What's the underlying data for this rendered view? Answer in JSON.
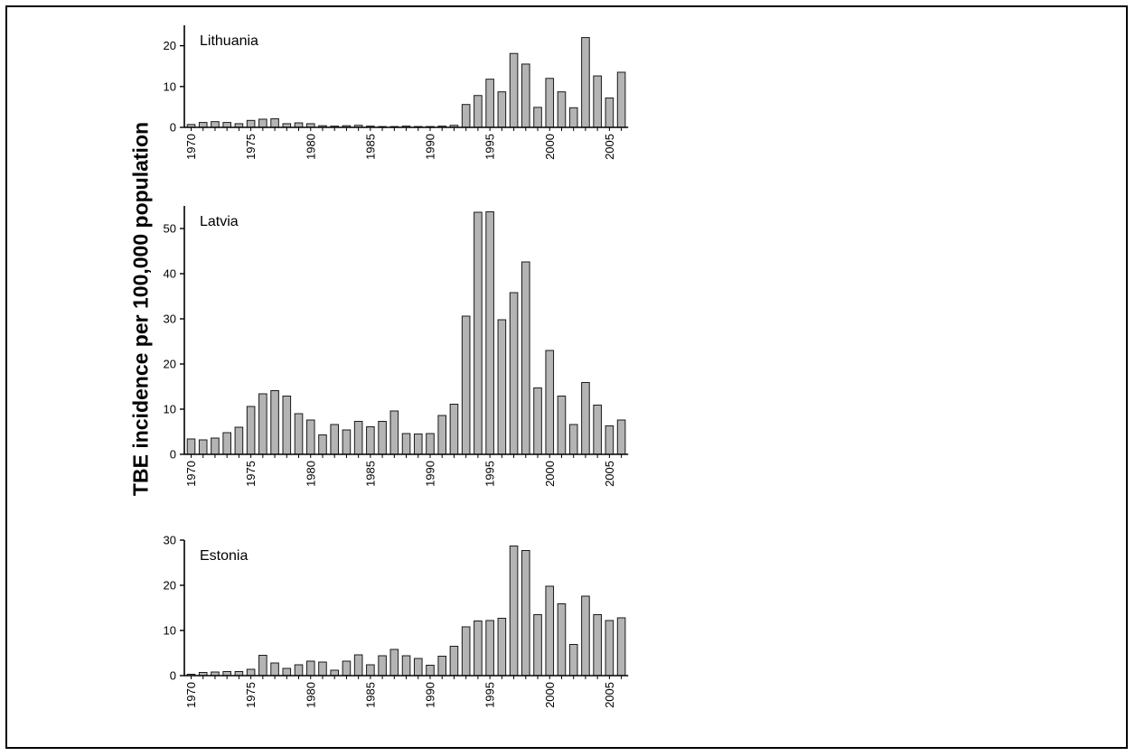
{
  "figure": {
    "ylabel": "TBE incidence per 100,000 population"
  },
  "chart_data": [
    {
      "type": "bar",
      "title": "Lithuania",
      "xlabel": "",
      "ylabel": "TBE incidence per 100,000 population",
      "ylim": [
        0,
        25
      ],
      "yticks": [
        0,
        10,
        20
      ],
      "xticks": [
        1970,
        1975,
        1980,
        1985,
        1990,
        1995,
        2000,
        2005
      ],
      "grid": false,
      "categories": [
        1970,
        1971,
        1972,
        1973,
        1974,
        1975,
        1976,
        1977,
        1978,
        1979,
        1980,
        1981,
        1982,
        1983,
        1984,
        1985,
        1986,
        1987,
        1988,
        1989,
        1990,
        1991,
        1992,
        1993,
        1994,
        1995,
        1996,
        1997,
        1998,
        1999,
        2000,
        2001,
        2002,
        2003,
        2004,
        2005,
        2006
      ],
      "values": [
        0.7,
        1.2,
        1.4,
        1.2,
        0.9,
        1.7,
        2.0,
        2.1,
        0.9,
        1.1,
        0.9,
        0.4,
        0.3,
        0.4,
        0.5,
        0.3,
        0.2,
        0.2,
        0.3,
        0.2,
        0.2,
        0.3,
        0.5,
        5.6,
        7.8,
        11.8,
        8.7,
        18.1,
        15.5,
        4.9,
        12.0,
        8.7,
        4.8,
        22.0,
        12.6,
        7.2,
        13.5
      ]
    },
    {
      "type": "bar",
      "title": "Latvia",
      "xlabel": "",
      "ylabel": "TBE incidence per 100,000 population",
      "ylim": [
        0,
        55
      ],
      "yticks": [
        0,
        10,
        20,
        30,
        40,
        50
      ],
      "xticks": [
        1970,
        1975,
        1980,
        1985,
        1990,
        1995,
        2000,
        2005
      ],
      "grid": false,
      "categories": [
        1970,
        1971,
        1972,
        1973,
        1974,
        1975,
        1976,
        1977,
        1978,
        1979,
        1980,
        1981,
        1982,
        1983,
        1984,
        1985,
        1986,
        1987,
        1988,
        1989,
        1990,
        1991,
        1992,
        1993,
        1994,
        1995,
        1996,
        1997,
        1998,
        1999,
        2000,
        2001,
        2002,
        2003,
        2004,
        2005,
        2006
      ],
      "values": [
        3.4,
        3.2,
        3.6,
        4.8,
        6.0,
        10.6,
        13.4,
        14.1,
        12.9,
        9.0,
        7.6,
        4.3,
        6.6,
        5.4,
        7.3,
        6.1,
        7.3,
        9.6,
        4.6,
        4.5,
        4.6,
        8.6,
        11.1,
        30.6,
        53.6,
        53.7,
        29.8,
        35.8,
        42.6,
        14.7,
        23.0,
        12.9,
        6.6,
        15.9,
        10.9,
        6.3,
        7.6
      ]
    },
    {
      "type": "bar",
      "title": "Estonia",
      "xlabel": "",
      "ylabel": "TBE incidence per 100,000 population",
      "ylim": [
        0,
        30
      ],
      "yticks": [
        0,
        10,
        20,
        30
      ],
      "xticks": [
        1970,
        1975,
        1980,
        1985,
        1990,
        1995,
        2000,
        2005
      ],
      "grid": false,
      "categories": [
        1970,
        1971,
        1972,
        1973,
        1974,
        1975,
        1976,
        1977,
        1978,
        1979,
        1980,
        1981,
        1982,
        1983,
        1984,
        1985,
        1986,
        1987,
        1988,
        1989,
        1990,
        1991,
        1992,
        1993,
        1994,
        1995,
        1996,
        1997,
        1998,
        1999,
        2000,
        2001,
        2002,
        2003,
        2004,
        2005,
        2006
      ],
      "values": [
        0.3,
        0.7,
        0.8,
        0.9,
        0.9,
        1.4,
        4.5,
        2.8,
        1.6,
        2.4,
        3.2,
        3.0,
        1.2,
        3.2,
        4.6,
        2.4,
        4.4,
        5.8,
        4.4,
        3.8,
        2.3,
        4.3,
        6.5,
        10.8,
        12.1,
        12.2,
        12.7,
        28.7,
        27.7,
        13.5,
        19.8,
        15.9,
        6.9,
        17.6,
        13.5,
        12.2,
        12.8
      ]
    }
  ]
}
